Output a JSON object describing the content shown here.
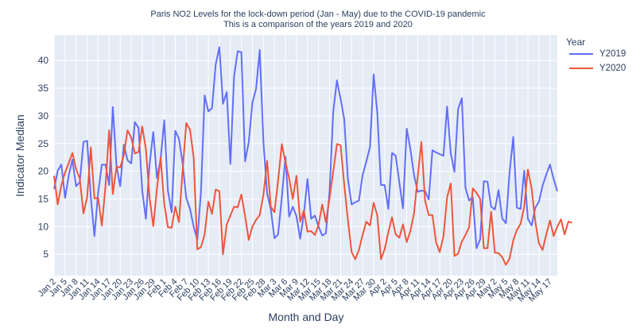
{
  "chart_data": {
    "type": "line",
    "title": "Paris NO2 Levels for the lock-down period (Jan - May) due to the COVID-19 pandemic",
    "subtitle": "This is a comparison of the years 2019 and 2020",
    "xlabel": "Month and Day",
    "ylabel": "Indicator Median",
    "ylim": [
      1.5,
      44
    ],
    "yticks": [
      5,
      10,
      15,
      20,
      25,
      30,
      35,
      40
    ],
    "grid": true,
    "legend_position": "right",
    "legend_title": "Year",
    "xtick_labels": [
      "Jan 2",
      "Jan 5",
      "Jan 8",
      "Jan 11",
      "Jan 14",
      "Jan 17",
      "Jan 20",
      "Jan 23",
      "Jan 26",
      "Jan 29",
      "Feb 1",
      "Feb 4",
      "Feb 7",
      "Feb 10",
      "Feb 13",
      "Feb 16",
      "Feb 19",
      "Feb 22",
      "Feb 25",
      "Feb 28",
      "Mar 3",
      "Mar 6",
      "Mar 9",
      "Mar 12",
      "Mar 15",
      "Mar 18",
      "Mar 21",
      "Mar 24",
      "Mar 27",
      "Mar 30",
      "Apr 2",
      "Apr 5",
      "Apr 8",
      "Apr 11",
      "Apr 14",
      "Apr 17",
      "Apr 20",
      "Apr 23",
      "Apr 26",
      "Apr 29",
      "May 2",
      "May 5",
      "May 8",
      "May 11",
      "May 14",
      "May 17"
    ],
    "series": [
      {
        "name": "Y2019",
        "color": "#636efa",
        "values": [
          16.8,
          20.1,
          21.2,
          15.2,
          19.3,
          22.1,
          17.3,
          18.0,
          25.3,
          25.5,
          15.4,
          8.3,
          16.1,
          21.2,
          21.2,
          17.5,
          31.6,
          21.0,
          17.3,
          24.8,
          22.0,
          21.4,
          28.9,
          27.8,
          16.5,
          11.4,
          21.2,
          27.1,
          18.8,
          22.1,
          29.2,
          16.5,
          12.6,
          27.3,
          25.9,
          21.4,
          15.2,
          13.2,
          10.0,
          7.6,
          16.3,
          33.7,
          30.8,
          31.4,
          39.3,
          42.4,
          32.2,
          34.3,
          21.3,
          37.1,
          41.7,
          41.5,
          21.8,
          25.3,
          32.4,
          34.9,
          41.9,
          25.2,
          16.0,
          13.2,
          7.9,
          8.6,
          15.3,
          22.6,
          11.8,
          13.6,
          11.9,
          7.8,
          12.3,
          18.6,
          11.4,
          12.0,
          10.0,
          8.4,
          8.8,
          16.3,
          30.8,
          36.4,
          33.1,
          29.4,
          18.6,
          14.0,
          14.4,
          14.7,
          19.3,
          21.7,
          24.4,
          37.5,
          30.5,
          17.5,
          17.5,
          13.2,
          23.3,
          22.8,
          18.0,
          13.3,
          27.7,
          24.0,
          19.3,
          16.3,
          16.5,
          16.4,
          14.9,
          23.8,
          23.4,
          23.1,
          22.8,
          31.7,
          23.2,
          19.9,
          31.2,
          33.2,
          17.0,
          14.7,
          15.3,
          6.1,
          7.7,
          18.2,
          18.1,
          13.6,
          13.1,
          16.6,
          11.5,
          10.6,
          19.7,
          26.2,
          13.4,
          13.2,
          20.1,
          11.4,
          10.2,
          13.4,
          14.5,
          17.4,
          19.4,
          21.2,
          18.6,
          16.4
        ]
      },
      {
        "name": "Y2020",
        "color": "#ef553b",
        "values": [
          19.2,
          14.0,
          17.5,
          19.8,
          21.5,
          23.3,
          20.4,
          18.7,
          12.4,
          15.3,
          24.3,
          15.1,
          15.2,
          10.2,
          17.3,
          27.4,
          15.9,
          20.8,
          20.7,
          22.9,
          27.4,
          26.1,
          23.2,
          23.5,
          28.1,
          24.0,
          15.3,
          10.1,
          16.8,
          22.5,
          14.1,
          9.9,
          9.8,
          13.6,
          10.8,
          20.1,
          28.7,
          27.5,
          22.5,
          5.9,
          6.3,
          8.6,
          14.5,
          12.3,
          16.7,
          16.4,
          5.0,
          10.4,
          12.0,
          13.6,
          13.5,
          15.8,
          11.9,
          7.6,
          10.0,
          11.2,
          12.1,
          15.8,
          21.9,
          13.6,
          12.6,
          18.3,
          24.9,
          21.6,
          18.7,
          15.0,
          19.2,
          10.9,
          12.9,
          9.1,
          9.2,
          8.5,
          10.3,
          14.0,
          10.8,
          15.1,
          20.0,
          24.9,
          24.7,
          17.6,
          11.2,
          5.4,
          4.1,
          5.8,
          8.5,
          10.9,
          10.2,
          14.3,
          12.0,
          4.1,
          5.9,
          9.0,
          11.7,
          8.6,
          8.0,
          10.4,
          7.2,
          9.2,
          12.4,
          19.0,
          25.3,
          14.7,
          12.1,
          12.1,
          7.2,
          5.4,
          8.2,
          15.3,
          17.8,
          4.7,
          5.1,
          7.3,
          8.5,
          9.9,
          16.9,
          16.1,
          15.0,
          6.1,
          6.1,
          12.7,
          5.3,
          5.2,
          4.5,
          3.1,
          4.2,
          7.5,
          9.4,
          10.5,
          13.6,
          20.3,
          16.9,
          10.9,
          7.0,
          5.8,
          8.6,
          11.1,
          8.3,
          10.0,
          11.3,
          8.6,
          10.9,
          10.7
        ]
      }
    ]
  }
}
